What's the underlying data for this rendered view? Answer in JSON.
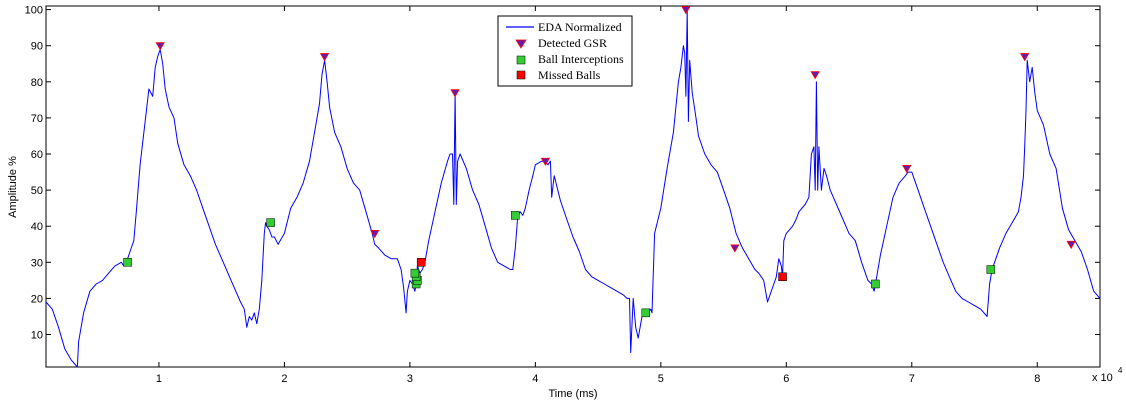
{
  "chart_data": {
    "type": "line",
    "xlabel": "Time (ms)",
    "ylabel": "Amplitude %",
    "x_multiplier": "x 10",
    "x_exponent": "4",
    "xlim": [
      0.1,
      8.5
    ],
    "ylim": [
      1,
      101
    ],
    "xticks": [
      1,
      2,
      3,
      4,
      5,
      6,
      7,
      8
    ],
    "yticks": [
      10,
      20,
      30,
      40,
      50,
      60,
      70,
      80,
      90,
      100
    ],
    "xtick_labels": [
      "1",
      "2",
      "3",
      "4",
      "5",
      "6",
      "7",
      "8"
    ],
    "ytick_labels": [
      "10",
      "20",
      "30",
      "40",
      "50",
      "60",
      "70",
      "80",
      "90",
      "100"
    ],
    "legend_position": "top-center",
    "colors": {
      "eda": "#0000ff",
      "gsr": "#6a1aa8",
      "gsr_edge": "#ff0000",
      "ball": "#33cc33",
      "missed": "#ff0000"
    },
    "series": [
      {
        "name": "EDA Normalized",
        "kind": "line",
        "x": [
          0.1,
          0.15,
          0.2,
          0.25,
          0.3,
          0.35,
          0.36,
          0.38,
          0.4,
          0.45,
          0.5,
          0.55,
          0.6,
          0.65,
          0.7,
          0.72,
          0.75,
          0.78,
          0.8,
          0.82,
          0.85,
          0.9,
          0.92,
          0.95,
          0.97,
          0.99,
          1.01,
          1.03,
          1.05,
          1.08,
          1.12,
          1.15,
          1.2,
          1.25,
          1.3,
          1.35,
          1.4,
          1.45,
          1.5,
          1.55,
          1.6,
          1.65,
          1.68,
          1.7,
          1.72,
          1.74,
          1.76,
          1.78,
          1.8,
          1.82,
          1.84,
          1.85,
          1.86,
          1.88,
          1.9,
          1.92,
          1.95,
          2.0,
          2.05,
          2.1,
          2.15,
          2.2,
          2.25,
          2.28,
          2.3,
          2.32,
          2.34,
          2.36,
          2.4,
          2.45,
          2.5,
          2.55,
          2.6,
          2.65,
          2.7,
          2.72,
          2.75,
          2.8,
          2.85,
          2.9,
          2.93,
          2.95,
          2.97,
          2.98,
          3.0,
          3.02,
          3.04,
          3.05,
          3.06,
          3.08,
          3.1,
          3.12,
          3.15,
          3.2,
          3.25,
          3.3,
          3.32,
          3.34,
          3.35,
          3.36,
          3.37,
          3.38,
          3.4,
          3.45,
          3.5,
          3.55,
          3.6,
          3.65,
          3.7,
          3.75,
          3.8,
          3.82,
          3.84,
          3.86,
          3.88,
          3.9,
          3.92,
          3.95,
          3.98,
          4.0,
          4.05,
          4.08,
          4.1,
          4.12,
          4.13,
          4.15,
          4.2,
          4.25,
          4.3,
          4.35,
          4.4,
          4.45,
          4.5,
          4.55,
          4.6,
          4.65,
          4.7,
          4.73,
          4.75,
          4.76,
          4.78,
          4.8,
          4.82,
          4.85,
          4.9,
          4.92,
          4.93,
          4.95,
          5.0,
          5.05,
          5.1,
          5.12,
          5.14,
          5.16,
          5.18,
          5.19,
          5.2,
          5.21,
          5.22,
          5.23,
          5.25,
          5.28,
          5.3,
          5.35,
          5.4,
          5.45,
          5.5,
          5.55,
          5.6,
          5.65,
          5.7,
          5.75,
          5.78,
          5.8,
          5.82,
          5.85,
          5.88,
          5.9,
          5.92,
          5.94,
          5.96,
          5.97,
          5.98,
          6.0,
          6.05,
          6.08,
          6.1,
          6.15,
          6.18,
          6.2,
          6.22,
          6.23,
          6.24,
          6.25,
          6.26,
          6.28,
          6.3,
          6.32,
          6.35,
          6.4,
          6.45,
          6.5,
          6.55,
          6.6,
          6.65,
          6.68,
          6.7,
          6.72,
          6.75,
          6.8,
          6.85,
          6.9,
          6.95,
          6.97,
          7.0,
          7.05,
          7.1,
          7.15,
          7.2,
          7.25,
          7.3,
          7.35,
          7.4,
          7.45,
          7.5,
          7.55,
          7.6,
          7.62,
          7.64,
          7.66,
          7.7,
          7.75,
          7.8,
          7.85,
          7.87,
          7.89,
          7.9,
          7.91,
          7.92,
          7.94,
          7.96,
          7.98,
          8.0,
          8.05,
          8.1,
          8.15,
          8.2,
          8.25,
          8.3,
          8.35,
          8.4,
          8.45,
          8.5
        ],
        "y": [
          19,
          17,
          12,
          6,
          3,
          1,
          8,
          12,
          16,
          22,
          24,
          25,
          27,
          29,
          30,
          29,
          31,
          34,
          36,
          44,
          57,
          72,
          78,
          76,
          84,
          87,
          89,
          85,
          78,
          73,
          70,
          63,
          57,
          54,
          50,
          45,
          40,
          35,
          31,
          27,
          23,
          19,
          17,
          12,
          15,
          14,
          16,
          13,
          17,
          25,
          38,
          41,
          40,
          39,
          37,
          37,
          35,
          38,
          45,
          48,
          52,
          58,
          68,
          74,
          82,
          86,
          80,
          73,
          66,
          62,
          56,
          52,
          50,
          44,
          38,
          35,
          34,
          32,
          31,
          31,
          28,
          23,
          16,
          22,
          25,
          24,
          22,
          24,
          29,
          27,
          28,
          30,
          36,
          44,
          52,
          58,
          60,
          60,
          46,
          77,
          46,
          58,
          60,
          56,
          50,
          46,
          40,
          34,
          30,
          29,
          28,
          28,
          34,
          43,
          44,
          43,
          45,
          50,
          54,
          57,
          58,
          58,
          57,
          58,
          48,
          54,
          47,
          42,
          37,
          33,
          28,
          26,
          25,
          24,
          23,
          22,
          21,
          20,
          20,
          5,
          20,
          12,
          9,
          15,
          16,
          17,
          16,
          38,
          45,
          56,
          66,
          73,
          80,
          84,
          90,
          88,
          76,
          100,
          69,
          86,
          77,
          70,
          65,
          60,
          57,
          55,
          50,
          45,
          38,
          34,
          31,
          28,
          27,
          26,
          25,
          19,
          22,
          24,
          26,
          31,
          29,
          26,
          36,
          38,
          40,
          42,
          44,
          46,
          48,
          60,
          62,
          50,
          80,
          50,
          62,
          50,
          56,
          54,
          50,
          46,
          42,
          38,
          36,
          30,
          25,
          24,
          22,
          26,
          32,
          40,
          48,
          52,
          54,
          55,
          55,
          50,
          45,
          40,
          35,
          30,
          26,
          22,
          20,
          19,
          18,
          17,
          15,
          24,
          28,
          30,
          34,
          38,
          41,
          44,
          48,
          54,
          62,
          72,
          86,
          80,
          84,
          77,
          72,
          68,
          60,
          56,
          45,
          39,
          36,
          33,
          28,
          22,
          20
        ]
      },
      {
        "name": "Detected GSR",
        "kind": "marker-triangle",
        "x": [
          1.01,
          2.32,
          2.72,
          3.36,
          4.08,
          5.2,
          5.59,
          6.23,
          6.96,
          7.9,
          8.27
        ],
        "y": [
          90,
          87,
          38,
          77,
          58,
          100,
          34,
          82,
          56,
          87,
          35
        ]
      },
      {
        "name": "Ball Interceptions",
        "kind": "marker-square",
        "x": [
          0.75,
          1.89,
          3.05,
          3.06,
          3.05,
          3.04,
          3.84,
          4.88,
          6.71,
          7.63
        ],
        "y": [
          30,
          41,
          24,
          25,
          26,
          27,
          43,
          16,
          24,
          28
        ]
      },
      {
        "name": "Missed Balls",
        "kind": "marker-square",
        "x": [
          3.09,
          5.97
        ],
        "y": [
          30,
          26
        ]
      }
    ]
  }
}
